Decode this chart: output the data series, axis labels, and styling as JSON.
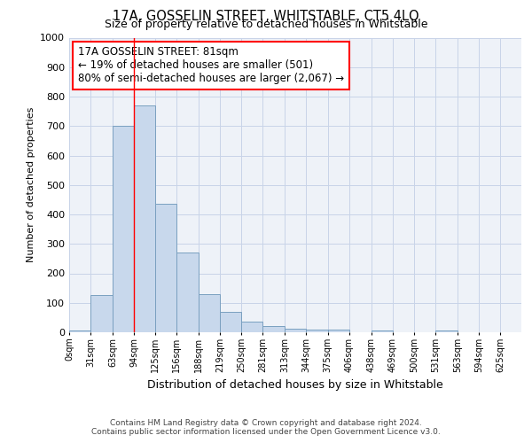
{
  "title": "17A, GOSSELIN STREET, WHITSTABLE, CT5 4LQ",
  "subtitle": "Size of property relative to detached houses in Whitstable",
  "xlabel": "Distribution of detached houses by size in Whitstable",
  "ylabel": "Number of detached properties",
  "footer_line1": "Contains HM Land Registry data © Crown copyright and database right 2024.",
  "footer_line2": "Contains public sector information licensed under the Open Government Licence v3.0.",
  "annotation_title": "17A GOSSELIN STREET: 81sqm",
  "annotation_line2": "← 19% of detached houses are smaller (501)",
  "annotation_line3": "80% of semi-detached houses are larger (2,067) →",
  "property_size": 81,
  "bar_left_edges": [
    0,
    31,
    63,
    94,
    125,
    156,
    188,
    219,
    250,
    281,
    313,
    344,
    375,
    406,
    438,
    469,
    500,
    531,
    563,
    594
  ],
  "bar_widths": [
    31,
    32,
    31,
    31,
    31,
    32,
    31,
    31,
    31,
    32,
    31,
    31,
    31,
    32,
    31,
    31,
    31,
    32,
    31,
    31
  ],
  "bar_heights": [
    5,
    125,
    700,
    770,
    435,
    270,
    130,
    68,
    37,
    22,
    12,
    10,
    10,
    0,
    5,
    0,
    0,
    5,
    0,
    0
  ],
  "bar_color": "#c8d8ec",
  "bar_edge_color": "#7aa0c0",
  "red_line_x": 94,
  "annotation_box_color": "white",
  "annotation_box_edge_color": "red",
  "ylim": [
    0,
    1000
  ],
  "yticks": [
    0,
    100,
    200,
    300,
    400,
    500,
    600,
    700,
    800,
    900,
    1000
  ],
  "xtick_labels": [
    "0sqm",
    "31sqm",
    "63sqm",
    "94sqm",
    "125sqm",
    "156sqm",
    "188sqm",
    "219sqm",
    "250sqm",
    "281sqm",
    "313sqm",
    "344sqm",
    "375sqm",
    "406sqm",
    "438sqm",
    "469sqm",
    "500sqm",
    "531sqm",
    "563sqm",
    "594sqm",
    "625sqm"
  ],
  "grid_color": "#c8d4e8",
  "background_color": "#eef2f8"
}
